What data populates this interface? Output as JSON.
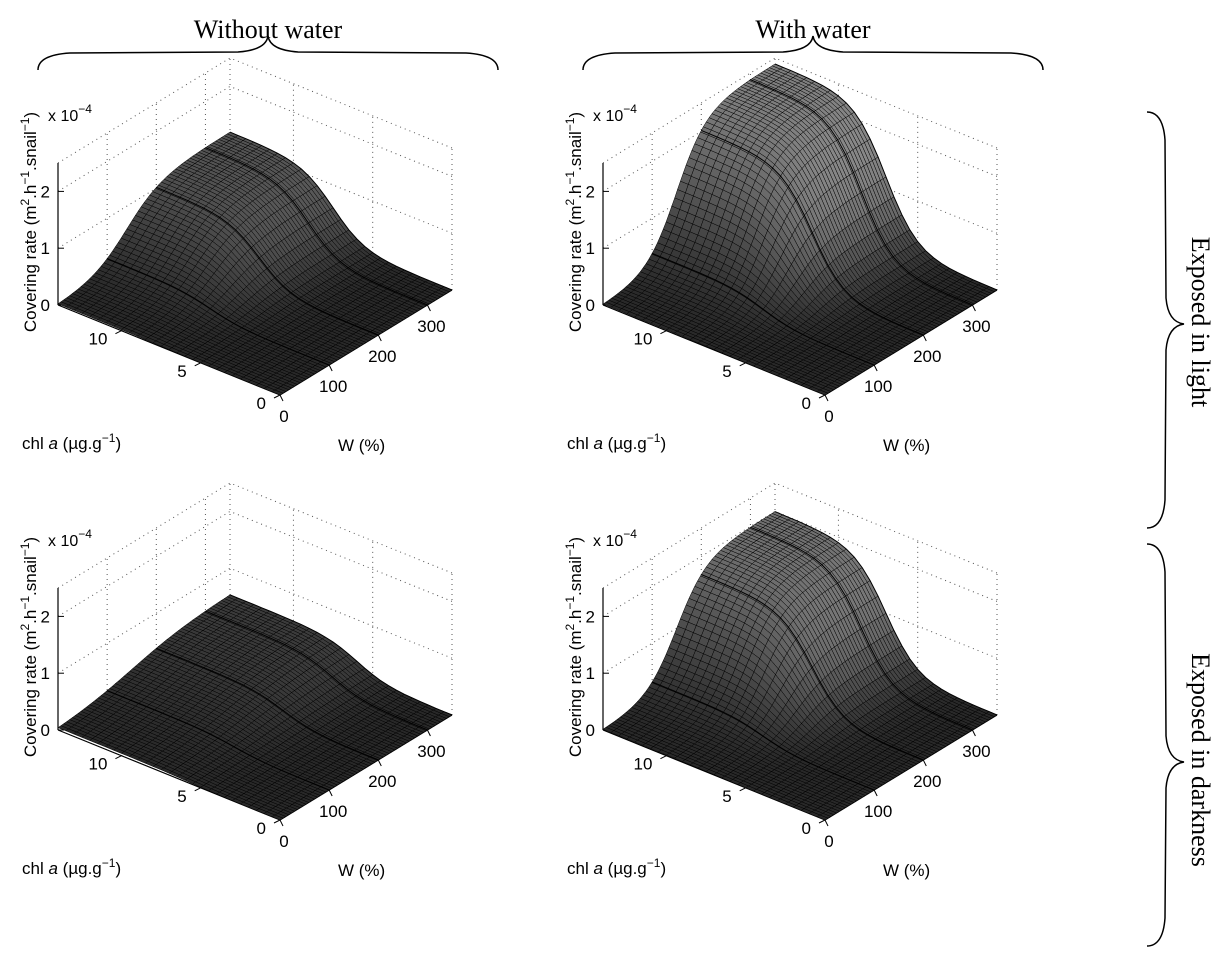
{
  "column_headers": [
    "Without water",
    "With water"
  ],
  "row_headers": [
    "Exposed in light",
    "Exposed in darkness"
  ],
  "chart_data": [
    {
      "type": "surface",
      "panel": "light-without-water",
      "exponent_label": "x 10",
      "exponent_sup": "−4",
      "zlabel": "Covering rate (m",
      "zlabel_parts": [
        "Covering rate (m",
        "2",
        ".h",
        "−1",
        ".snail",
        "−1",
        ")"
      ],
      "xlabel_parts": [
        "chl ",
        "a",
        " (µg.g",
        "−1",
        ")"
      ],
      "ylabel": "W (%)",
      "chl_ticks": [
        "0",
        "5",
        "10"
      ],
      "w_ticks": [
        "0",
        "100",
        "200",
        "300"
      ],
      "z_ticks": [
        "0",
        "1",
        "2"
      ],
      "chl_range": [
        0,
        14
      ],
      "w_range": [
        0,
        350
      ],
      "z_range": [
        0,
        2.5
      ],
      "chl_max": 1.2,
      "chl_rise_center": 7.5,
      "w_center": 140,
      "w_width": 35
    },
    {
      "type": "surface",
      "panel": "light-with-water",
      "exponent_label": "x 10",
      "exponent_sup": "−4",
      "zlabel_parts": [
        "Covering rate (m",
        "2",
        ".h",
        "−1",
        ".snail",
        "−1",
        ")"
      ],
      "xlabel_parts": [
        "chl ",
        "a",
        " (µg.g",
        "−1",
        ")"
      ],
      "ylabel": "W (%)",
      "chl_ticks": [
        "0",
        "5",
        "10"
      ],
      "w_ticks": [
        "0",
        "100",
        "200",
        "300"
      ],
      "z_ticks": [
        "0",
        "1",
        "2"
      ],
      "chl_range": [
        0,
        14
      ],
      "w_range": [
        0,
        350
      ],
      "z_range": [
        0,
        2.5
      ],
      "chl_max": 2.4,
      "chl_rise_center": 7.0,
      "w_center": 150,
      "w_width": 30
    },
    {
      "type": "surface",
      "panel": "darkness-without-water",
      "exponent_label": "x 10",
      "exponent_sup": "−4",
      "zlabel_parts": [
        "Covering rate (m",
        "2",
        ".h",
        "−1",
        ".snail",
        "−1",
        ")"
      ],
      "xlabel_parts": [
        "chl ",
        "a",
        " (µg.g",
        "−1",
        ")"
      ],
      "ylabel": "W (%)",
      "chl_ticks": [
        "0",
        "5",
        "10"
      ],
      "w_ticks": [
        "0",
        "100",
        "200",
        "300"
      ],
      "z_ticks": [
        "0",
        "1",
        "2"
      ],
      "chl_range": [
        0,
        14
      ],
      "w_range": [
        0,
        350
      ],
      "z_range": [
        0,
        2.5
      ],
      "chl_max": 0.55,
      "chl_rise_center": 6.0,
      "w_center": 150,
      "w_width": 60
    },
    {
      "type": "surface",
      "panel": "darkness-with-water",
      "exponent_label": "x 10",
      "exponent_sup": "−4",
      "zlabel_parts": [
        "Covering rate (m",
        "2",
        ".h",
        "−1",
        ".snail",
        "−1",
        ")"
      ],
      "xlabel_parts": [
        "chl ",
        "a",
        " (µg.g",
        "−1",
        ")"
      ],
      "ylabel": "W (%)",
      "chl_ticks": [
        "0",
        "5",
        "10"
      ],
      "w_ticks": [
        "0",
        "100",
        "200",
        "300"
      ],
      "z_ticks": [
        "0",
        "1",
        "2"
      ],
      "chl_range": [
        0,
        14
      ],
      "w_range": [
        0,
        350
      ],
      "z_range": [
        0,
        2.5
      ],
      "chl_max": 2.0,
      "chl_rise_center": 7.0,
      "w_center": 150,
      "w_width": 30
    }
  ]
}
